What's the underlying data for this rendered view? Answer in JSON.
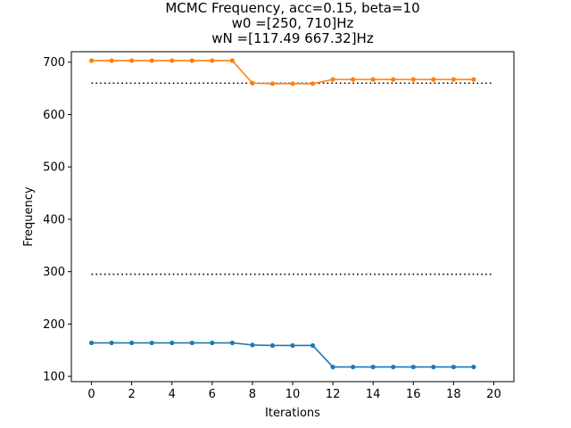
{
  "chart_data": {
    "type": "line",
    "title_lines": [
      "MCMC Frequency, acc=0.15, beta=10",
      "w0 =[250, 710]Hz",
      "wN =[117.49 667.32]Hz"
    ],
    "xlabel": "Iterations",
    "ylabel": "Frequency",
    "xlim": [
      -1,
      21
    ],
    "ylim": [
      90,
      720
    ],
    "xticks": [
      0,
      2,
      4,
      6,
      8,
      10,
      12,
      14,
      16,
      18,
      20
    ],
    "yticks": [
      100,
      200,
      300,
      400,
      500,
      600,
      700
    ],
    "x": [
      0,
      1,
      2,
      3,
      4,
      5,
      6,
      7,
      8,
      9,
      10,
      11,
      12,
      13,
      14,
      15,
      16,
      17,
      18,
      19
    ],
    "series": [
      {
        "color": "#1f77b4",
        "values": [
          164,
          164,
          164,
          164,
          164,
          164,
          164,
          164,
          160,
          159,
          159,
          159,
          118,
          118,
          118,
          118,
          118,
          118,
          118,
          118
        ]
      },
      {
        "color": "#ff7f0e",
        "values": [
          703,
          703,
          703,
          703,
          703,
          703,
          703,
          703,
          660,
          659,
          659,
          659,
          667,
          667,
          667,
          667,
          667,
          667,
          667,
          667
        ]
      }
    ],
    "reference_lines": [
      {
        "y": 295,
        "x_range": [
          0,
          20
        ],
        "style": "dotted",
        "color": "#000000"
      },
      {
        "y": 660,
        "x_range": [
          0,
          20
        ],
        "style": "dotted",
        "color": "#000000"
      }
    ],
    "grid": false,
    "legend": "none"
  }
}
